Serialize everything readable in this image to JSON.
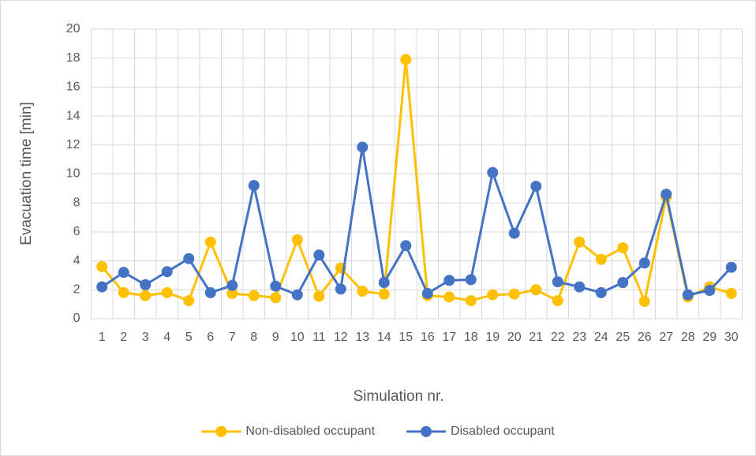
{
  "chart_data": {
    "type": "line",
    "xlabel": "Simulation nr.",
    "ylabel": "Evacuation time [min]",
    "categories": [
      "1",
      "2",
      "3",
      "4",
      "5",
      "6",
      "7",
      "8",
      "9",
      "10",
      "11",
      "12",
      "13",
      "14",
      "15",
      "16",
      "17",
      "18",
      "19",
      "20",
      "21",
      "22",
      "23",
      "24",
      "25",
      "26",
      "27",
      "28",
      "29",
      "30"
    ],
    "series": [
      {
        "name": "Non-disabled occupant",
        "color": "#ffc000",
        "values": [
          3.6,
          1.8,
          1.6,
          1.8,
          1.25,
          5.3,
          1.75,
          1.6,
          1.45,
          5.45,
          1.55,
          3.5,
          1.9,
          1.7,
          17.9,
          1.6,
          1.5,
          1.25,
          1.65,
          1.7,
          2.0,
          1.25,
          5.3,
          4.1,
          4.9,
          1.2,
          8.4,
          1.5,
          2.2,
          1.75
        ]
      },
      {
        "name": "Disabled occupant",
        "color": "#4472c4",
        "values": [
          2.2,
          3.2,
          2.35,
          3.25,
          4.15,
          1.8,
          2.3,
          9.2,
          2.25,
          1.65,
          4.4,
          2.05,
          11.85,
          2.5,
          5.05,
          1.75,
          2.65,
          2.7,
          10.1,
          5.9,
          9.15,
          2.55,
          2.2,
          1.8,
          2.5,
          3.85,
          8.6,
          1.65,
          1.95,
          3.55
        ]
      }
    ],
    "ylim": [
      0,
      20
    ],
    "yticks": [
      0,
      2,
      4,
      6,
      8,
      10,
      12,
      14,
      16,
      18,
      20
    ],
    "grid": true,
    "legend": "bottom"
  }
}
